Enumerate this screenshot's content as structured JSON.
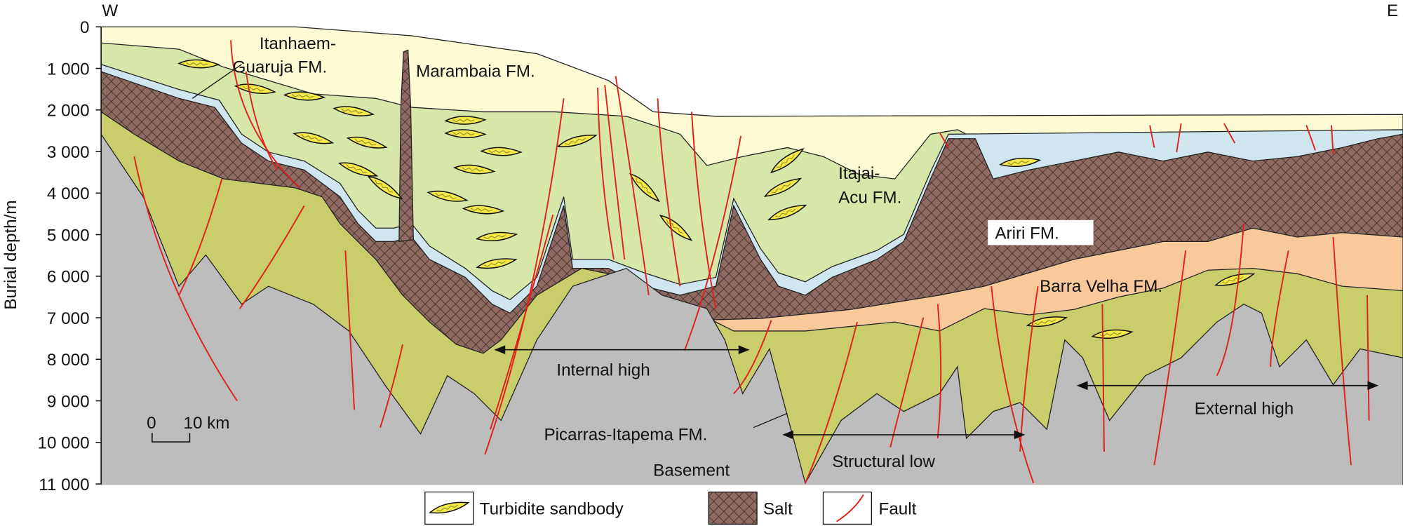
{
  "directions": {
    "west": "W",
    "east": "E"
  },
  "axis": {
    "label": "Burial depth/m",
    "ticks": [
      "0",
      "1 000",
      "2 000",
      "3 000",
      "4 000",
      "5 000",
      "6 000",
      "7 000",
      "8 000",
      "9 000",
      "10 000",
      "11 000"
    ]
  },
  "formations": [
    {
      "lines": [
        "Itanhaem-",
        "Guaruja FM."
      ]
    },
    {
      "lines": [
        "Marambaia FM."
      ]
    },
    {
      "lines": [
        "Itajai-",
        "Acu FM."
      ]
    },
    {
      "lines": [
        "Ariri FM."
      ]
    },
    {
      "lines": [
        "Barra Velha FM."
      ]
    },
    {
      "lines": [
        "Picarras-Itapema FM."
      ]
    },
    {
      "lines": [
        "Basement"
      ]
    }
  ],
  "annotations": [
    "Internal high",
    "Structural low",
    "External high"
  ],
  "scale_bar": {
    "start": "0",
    "end": "10 km"
  },
  "legend": [
    "Turbidite sandbody",
    "Salt",
    "Fault"
  ]
}
